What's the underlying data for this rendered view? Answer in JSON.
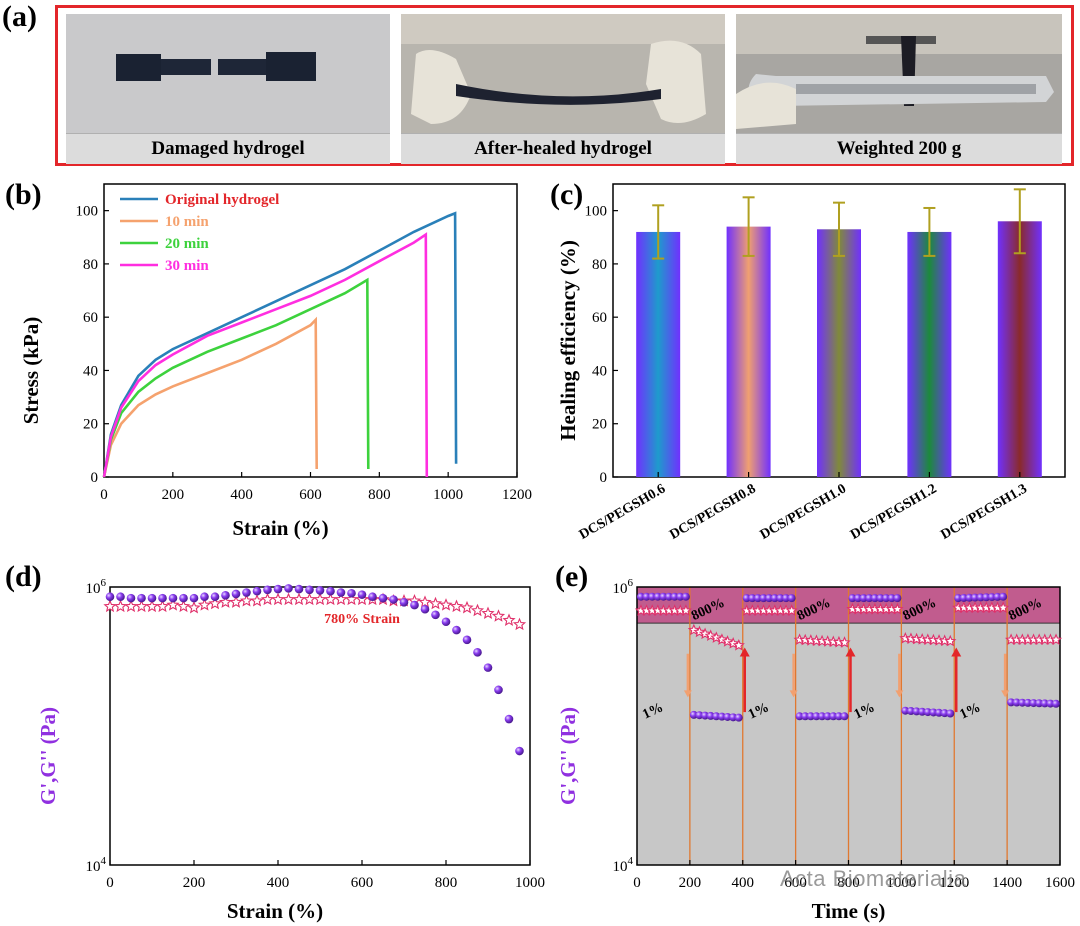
{
  "panel_a": {
    "letter": "(a)",
    "captions": [
      "Damaged hydrogel",
      "After-healed hydrogel",
      "Weighted 200 g"
    ],
    "frame_color": "#e3262a"
  },
  "panel_b": {
    "letter": "(b)"
  },
  "panel_c": {
    "letter": "(c)"
  },
  "panel_d": {
    "letter": "(d)"
  },
  "panel_e": {
    "letter": "(e)"
  },
  "watermark": "Acta Biomaterialia",
  "chart_data": [
    {
      "id": "b",
      "type": "line",
      "xlabel": "Strain (%)",
      "ylabel": "Stress (kPa)",
      "xlim": [
        0,
        1200
      ],
      "ylim": [
        0,
        110
      ],
      "xticks": [
        0,
        200,
        400,
        600,
        800,
        1000,
        1200
      ],
      "yticks": [
        0,
        20,
        40,
        60,
        80,
        100
      ],
      "legend": "top-left",
      "series": [
        {
          "name": "Original hydrogel",
          "color": "#2a80b9",
          "points": [
            [
              0,
              0
            ],
            [
              20,
              16
            ],
            [
              50,
              27
            ],
            [
              100,
              38
            ],
            [
              150,
              44
            ],
            [
              200,
              48
            ],
            [
              300,
              54
            ],
            [
              400,
              60
            ],
            [
              500,
              66
            ],
            [
              600,
              72
            ],
            [
              700,
              78
            ],
            [
              800,
              85
            ],
            [
              900,
              92
            ],
            [
              1000,
              98
            ],
            [
              1020,
              99
            ]
          ],
          "drop_to": 5
        },
        {
          "name": "10 min",
          "color": "#f5a26e",
          "points": [
            [
              0,
              0
            ],
            [
              20,
              12
            ],
            [
              50,
              20
            ],
            [
              100,
              27
            ],
            [
              150,
              31
            ],
            [
              200,
              34
            ],
            [
              300,
              39
            ],
            [
              400,
              44
            ],
            [
              500,
              50
            ],
            [
              600,
              57
            ],
            [
              615,
              59
            ]
          ],
          "drop_to": 3
        },
        {
          "name": "20 min",
          "color": "#3dd23d",
          "points": [
            [
              0,
              0
            ],
            [
              20,
              14
            ],
            [
              50,
              24
            ],
            [
              100,
              32
            ],
            [
              150,
              37
            ],
            [
              200,
              41
            ],
            [
              300,
              47
            ],
            [
              400,
              52
            ],
            [
              500,
              57
            ],
            [
              600,
              63
            ],
            [
              700,
              69
            ],
            [
              765,
              74
            ]
          ],
          "drop_to": 3
        },
        {
          "name": "30 min",
          "color": "#ff2ee0",
          "points": [
            [
              0,
              0
            ],
            [
              20,
              15
            ],
            [
              50,
              26
            ],
            [
              100,
              36
            ],
            [
              150,
              42
            ],
            [
              200,
              46
            ],
            [
              300,
              53
            ],
            [
              400,
              58
            ],
            [
              500,
              63
            ],
            [
              600,
              68
            ],
            [
              700,
              74
            ],
            [
              800,
              81
            ],
            [
              900,
              88
            ],
            [
              935,
              91
            ]
          ],
          "drop_to": 0
        }
      ]
    },
    {
      "id": "c",
      "type": "bar",
      "ylabel": "Healing efficiency (%)",
      "ylim": [
        0,
        110
      ],
      "yticks": [
        0,
        20,
        40,
        60,
        80,
        100
      ],
      "categories": [
        "DCS/PEGSH0.6",
        "DCS/PEGSH0.8",
        "DCS/PEGSH1.0",
        "DCS/PEGSH1.2",
        "DCS/PEGSH1.3"
      ],
      "values": [
        92,
        94,
        93,
        92,
        96
      ],
      "errors": [
        10,
        11,
        10,
        9,
        12
      ],
      "center_colors": [
        "#1e9bcc",
        "#f0a070",
        "#808a3a",
        "#1c8a3c",
        "#8a2a2a"
      ],
      "edge_color": "#7030ff",
      "error_color": "#b0a020"
    },
    {
      "id": "d",
      "type": "scatter",
      "xlabel": "Strain (%)",
      "ylabel": "G',G'' (Pa)",
      "xlim": [
        0,
        1000
      ],
      "ylim_log10": [
        4,
        6
      ],
      "xticks": [
        0,
        200,
        400,
        600,
        800,
        1000
      ],
      "yticks": [
        "10^4",
        "10^6"
      ],
      "annotation": "780% Strain",
      "series": [
        {
          "name": "G'",
          "marker": "sphere",
          "color": "#8a3cf0",
          "x": [
            0,
            25,
            50,
            75,
            100,
            125,
            150,
            175,
            200,
            225,
            250,
            275,
            300,
            325,
            350,
            375,
            400,
            425,
            450,
            475,
            500,
            525,
            550,
            575,
            600,
            625,
            650,
            675,
            700,
            725,
            750,
            775,
            800,
            825,
            850,
            875,
            900,
            925,
            950,
            975
          ],
          "log10y": [
            5.93,
            5.93,
            5.92,
            5.92,
            5.92,
            5.92,
            5.92,
            5.92,
            5.92,
            5.93,
            5.93,
            5.94,
            5.95,
            5.96,
            5.97,
            5.98,
            5.985,
            5.99,
            5.985,
            5.98,
            5.975,
            5.97,
            5.96,
            5.955,
            5.945,
            5.93,
            5.92,
            5.91,
            5.89,
            5.87,
            5.84,
            5.8,
            5.75,
            5.69,
            5.62,
            5.53,
            5.42,
            5.26,
            5.05,
            4.82
          ]
        },
        {
          "name": "G''",
          "marker": "star",
          "color": "#e0306a",
          "x": [
            0,
            25,
            50,
            75,
            100,
            125,
            150,
            175,
            200,
            225,
            250,
            275,
            300,
            325,
            350,
            375,
            400,
            425,
            450,
            475,
            500,
            525,
            550,
            575,
            600,
            625,
            650,
            675,
            700,
            725,
            750,
            775,
            800,
            825,
            850,
            875,
            900,
            925,
            950,
            975
          ],
          "log10y": [
            5.86,
            5.86,
            5.86,
            5.86,
            5.86,
            5.86,
            5.87,
            5.86,
            5.85,
            5.87,
            5.88,
            5.89,
            5.89,
            5.9,
            5.9,
            5.91,
            5.91,
            5.91,
            5.91,
            5.91,
            5.91,
            5.91,
            5.91,
            5.91,
            5.91,
            5.91,
            5.91,
            5.9,
            5.9,
            5.9,
            5.89,
            5.88,
            5.87,
            5.86,
            5.85,
            5.83,
            5.81,
            5.79,
            5.76,
            5.73
          ]
        }
      ]
    },
    {
      "id": "e",
      "type": "scatter",
      "xlabel": "Time (s)",
      "ylabel": "G',G'' (Pa)",
      "xlim": [
        0,
        1600
      ],
      "ylim_log10": [
        4,
        6
      ],
      "xticks": [
        0,
        200,
        400,
        600,
        800,
        1000,
        1200,
        1400,
        1600
      ],
      "yticks": [
        "10^4",
        "10^6"
      ],
      "step_labels": [
        "800%",
        "1%"
      ],
      "step_times": [
        200,
        400,
        600,
        800,
        1000,
        1200,
        1400
      ],
      "high_strain_band_log10_min": 5.74,
      "series": [
        {
          "name": "G'",
          "marker": "sphere",
          "color": "#8a3cf0",
          "segments": [
            {
              "x": [
                0,
                200
              ],
              "log10y": [
                5.93,
                5.93
              ]
            },
            {
              "x": [
                200,
                400
              ],
              "log10y": [
                5.08,
                5.06
              ]
            },
            {
              "x": [
                400,
                600
              ],
              "log10y": [
                5.92,
                5.92
              ]
            },
            {
              "x": [
                600,
                800
              ],
              "log10y": [
                5.07,
                5.07
              ]
            },
            {
              "x": [
                800,
                1000
              ],
              "log10y": [
                5.92,
                5.92
              ]
            },
            {
              "x": [
                1000,
                1200
              ],
              "log10y": [
                5.11,
                5.09
              ]
            },
            {
              "x": [
                1200,
                1400
              ],
              "log10y": [
                5.92,
                5.93
              ]
            },
            {
              "x": [
                1400,
                1600
              ],
              "log10y": [
                5.17,
                5.16
              ]
            }
          ]
        },
        {
          "name": "G''",
          "marker": "star",
          "color": "#e0306a",
          "segments": [
            {
              "x": [
                0,
                200
              ],
              "log10y": [
                5.83,
                5.83
              ]
            },
            {
              "x": [
                200,
                400
              ],
              "log10y": [
                5.69,
                5.58
              ]
            },
            {
              "x": [
                400,
                600
              ],
              "log10y": [
                5.83,
                5.83
              ]
            },
            {
              "x": [
                600,
                800
              ],
              "log10y": [
                5.62,
                5.6
              ]
            },
            {
              "x": [
                800,
                1000
              ],
              "log10y": [
                5.84,
                5.84
              ]
            },
            {
              "x": [
                1000,
                1200
              ],
              "log10y": [
                5.63,
                5.61
              ]
            },
            {
              "x": [
                1200,
                1400
              ],
              "log10y": [
                5.85,
                5.85
              ]
            },
            {
              "x": [
                1400,
                1600
              ],
              "log10y": [
                5.62,
                5.62
              ]
            }
          ]
        }
      ]
    }
  ]
}
